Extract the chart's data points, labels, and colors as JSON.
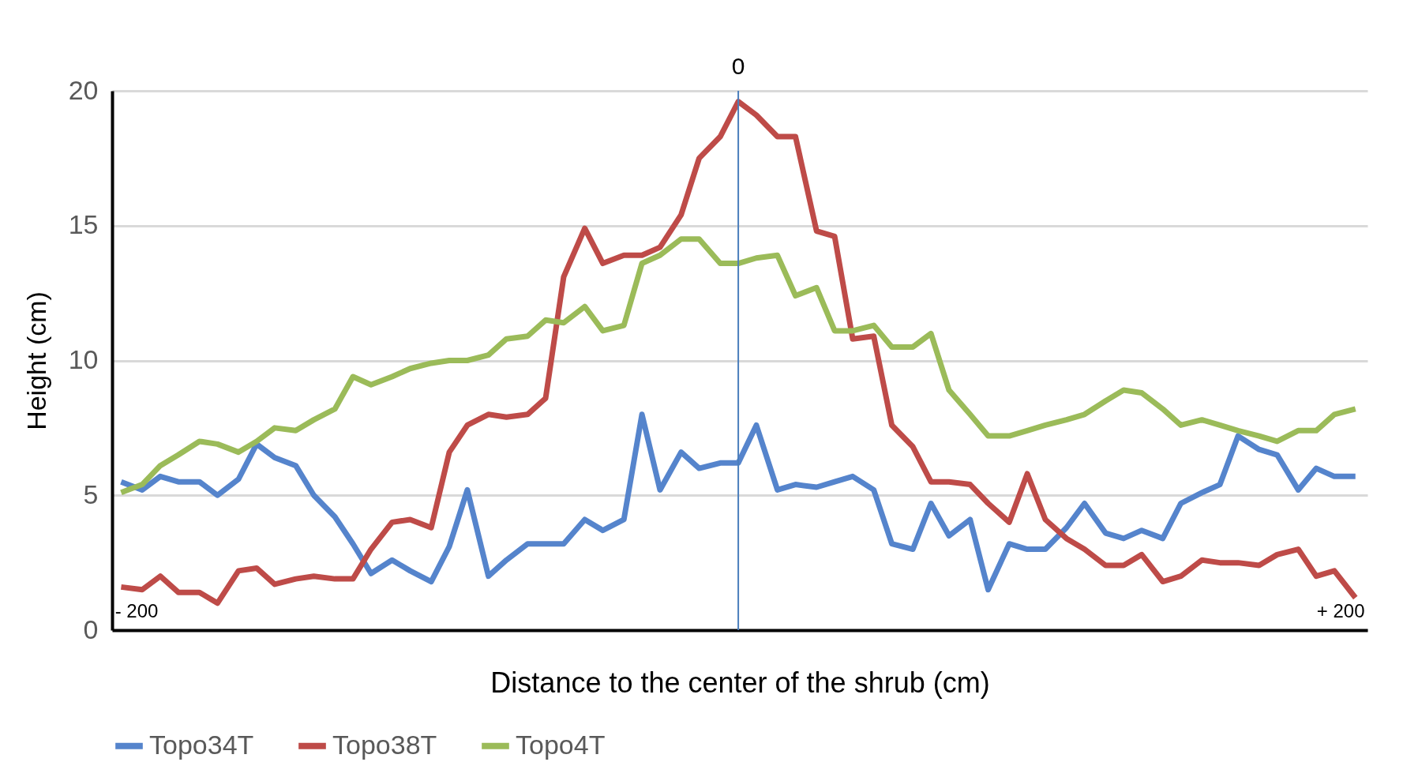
{
  "chart_data": {
    "type": "line",
    "xlabel": "Distance to the center of the shrub (cm)",
    "ylabel": "Height (cm)",
    "x": [
      -205,
      -198,
      -192,
      -186,
      -179,
      -173,
      -166,
      -160,
      -154,
      -147,
      -141,
      -134,
      -128,
      -122,
      -115,
      -109,
      -102,
      -96,
      -90,
      -83,
      -77,
      -70,
      -64,
      -58,
      -51,
      -45,
      -38,
      -32,
      -26,
      -19,
      -13,
      -6,
      0,
      6,
      13,
      19,
      26,
      32,
      38,
      45,
      51,
      58,
      64,
      70,
      77,
      83,
      90,
      96,
      102,
      109,
      115,
      122,
      128,
      134,
      141,
      147,
      154,
      160,
      166,
      173,
      179,
      186,
      192,
      198,
      205
    ],
    "series": [
      {
        "name": "Topo34T",
        "color": "#5584cc",
        "values": [
          5.5,
          5.2,
          5.7,
          5.5,
          5.5,
          5.0,
          5.6,
          6.9,
          6.4,
          6.1,
          5.0,
          4.2,
          3.2,
          2.1,
          2.6,
          2.2,
          1.8,
          3.1,
          5.2,
          2.0,
          2.6,
          3.2,
          3.2,
          3.2,
          4.1,
          3.7,
          4.1,
          8.0,
          5.2,
          6.6,
          6.0,
          6.2,
          6.2,
          7.6,
          5.2,
          5.4,
          5.3,
          5.5,
          5.7,
          5.2,
          3.2,
          3.0,
          4.7,
          3.5,
          4.1,
          1.5,
          3.2,
          3.0,
          3.0,
          3.8,
          4.7,
          3.6,
          3.4,
          3.7,
          3.4,
          4.7,
          5.1,
          5.4,
          7.2,
          6.7,
          6.5,
          5.2,
          6.0,
          5.7,
          5.7
        ]
      },
      {
        "name": "Topo38T",
        "color": "#be4b48",
        "values": [
          1.6,
          1.5,
          2.0,
          1.4,
          1.4,
          1.0,
          2.2,
          2.3,
          1.7,
          1.9,
          2.0,
          1.9,
          1.9,
          3.0,
          4.0,
          4.1,
          3.8,
          6.6,
          7.6,
          8.0,
          7.9,
          8.0,
          8.6,
          13.1,
          14.9,
          13.6,
          13.9,
          13.9,
          14.2,
          15.4,
          17.5,
          18.3,
          19.6,
          19.1,
          18.3,
          18.3,
          14.8,
          14.6,
          10.8,
          10.9,
          7.6,
          6.8,
          5.5,
          5.5,
          5.4,
          4.7,
          4.0,
          5.8,
          4.1,
          3.4,
          3.0,
          2.4,
          2.4,
          2.8,
          1.8,
          2.0,
          2.6,
          2.5,
          2.5,
          2.4,
          2.8,
          3.0,
          2.0,
          2.2,
          1.2
        ]
      },
      {
        "name": "Topo4T",
        "color": "#9bbb59",
        "values": [
          5.1,
          5.4,
          6.1,
          6.5,
          7.0,
          6.9,
          6.6,
          7.0,
          7.5,
          7.4,
          7.8,
          8.2,
          9.4,
          9.1,
          9.4,
          9.7,
          9.9,
          10.0,
          10.0,
          10.2,
          10.8,
          10.9,
          11.5,
          11.4,
          12.0,
          11.1,
          11.3,
          13.6,
          13.9,
          14.5,
          14.5,
          13.6,
          13.6,
          13.8,
          13.9,
          12.4,
          12.7,
          11.1,
          11.1,
          11.3,
          10.5,
          10.5,
          11.0,
          8.9,
          8.0,
          7.2,
          7.2,
          7.4,
          7.6,
          7.8,
          8.0,
          8.5,
          8.9,
          8.8,
          8.2,
          7.6,
          7.8,
          7.6,
          7.4,
          7.2,
          7.0,
          7.4,
          7.4,
          8.0,
          8.2
        ]
      }
    ],
    "xlim": [
      -208,
      209
    ],
    "xticks": [
      {
        "value": -200,
        "label": "- 200"
      },
      {
        "value": 200,
        "label": "+ 200"
      }
    ],
    "ylim": [
      0,
      20
    ],
    "yticks": [
      0,
      5,
      10,
      15,
      20
    ],
    "ref_lines": [
      {
        "axis": "x",
        "value": 0,
        "label": "0",
        "color": "#4a7ebb"
      }
    ],
    "grid": "y",
    "legend": "bottom",
    "marker": "none",
    "line_style": "solid"
  }
}
